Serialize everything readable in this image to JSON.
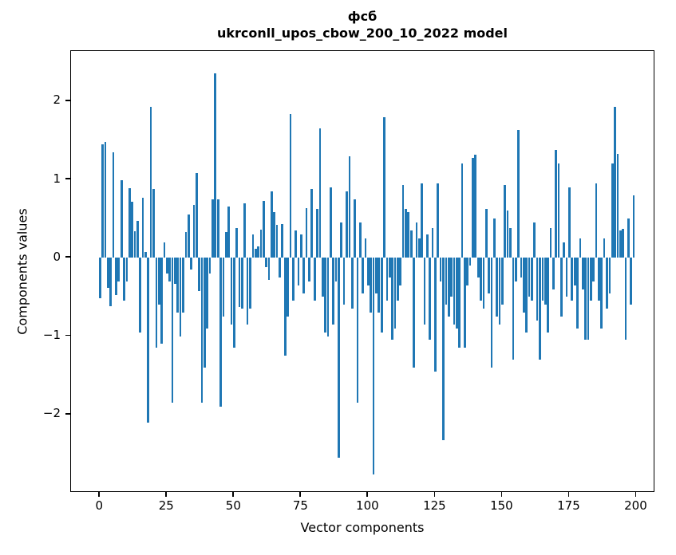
{
  "figure": {
    "title_line1": "фсб",
    "title_line2": "ukrconll_upos_cbow_200_10_2022 model"
  },
  "chart_data": {
    "type": "bar",
    "title": "фсб",
    "subtitle": "ukrconll_upos_cbow_200_10_2022 model",
    "xlabel": "Vector components",
    "ylabel": "Components values",
    "bar_color": "#1f77b4",
    "axis_color": "#000000",
    "background_color": "#ffffff",
    "grid": false,
    "legend": null,
    "bar_width_units": 0.8,
    "xlim": [
      -10.8,
      207.0
    ],
    "ylim": [
      -3.0,
      2.64
    ],
    "x_ticks": [
      0,
      25,
      50,
      75,
      100,
      125,
      150,
      175,
      200
    ],
    "x_tick_labels": [
      "0",
      "25",
      "50",
      "75",
      "100",
      "125",
      "150",
      "175",
      "200"
    ],
    "y_ticks": [
      2,
      1,
      0,
      -1,
      -2
    ],
    "y_tick_labels": [
      "2",
      "1",
      "0",
      "−1",
      "−2"
    ],
    "x_start": 0,
    "values": [
      -0.52,
      1.45,
      1.48,
      -0.38,
      -0.62,
      1.35,
      -0.48,
      -0.3,
      0.99,
      -0.55,
      -0.3,
      0.89,
      0.72,
      0.34,
      0.47,
      -0.95,
      0.77,
      0.07,
      -2.1,
      1.93,
      0.88,
      -1.15,
      -0.6,
      -1.1,
      0.2,
      -0.2,
      -0.3,
      -1.85,
      -0.33,
      -0.7,
      -1.0,
      -0.7,
      0.33,
      0.55,
      -0.15,
      0.68,
      1.08,
      -0.42,
      -1.85,
      -1.4,
      -0.9,
      -0.2,
      0.75,
      2.35,
      0.75,
      -1.9,
      -0.75,
      0.33,
      0.65,
      -0.85,
      -1.15,
      0.38,
      -0.63,
      -0.65,
      0.7,
      -0.85,
      -0.65,
      0.3,
      0.12,
      0.15,
      0.36,
      0.73,
      -0.12,
      -0.28,
      0.85,
      0.58,
      0.42,
      -0.25,
      0.43,
      -1.25,
      -0.75,
      1.84,
      -0.55,
      0.35,
      -0.35,
      0.3,
      -0.45,
      0.63,
      -0.3,
      0.88,
      -0.55,
      0.62,
      1.65,
      -0.5,
      -0.95,
      -1.0,
      0.9,
      -0.85,
      -0.3,
      -2.55,
      0.45,
      -0.6,
      0.85,
      1.3,
      -0.65,
      0.75,
      -1.85,
      0.45,
      -0.45,
      0.25,
      -0.35,
      -0.7,
      -2.77,
      -0.45,
      -0.7,
      -0.95,
      1.79,
      -0.55,
      -0.25,
      -1.05,
      -0.9,
      -0.55,
      -0.35,
      0.93,
      0.62,
      0.58,
      0.35,
      -1.4,
      0.45,
      0.25,
      0.95,
      -0.85,
      0.3,
      -1.05,
      0.38,
      -1.45,
      0.95,
      -0.3,
      -2.33,
      -0.6,
      -0.75,
      -0.5,
      -0.85,
      -0.9,
      -1.15,
      1.2,
      -1.15,
      -0.35,
      -0.1,
      1.28,
      1.32,
      -0.25,
      -0.55,
      -0.65,
      0.62,
      -0.45,
      -1.4,
      0.5,
      -0.75,
      -0.85,
      -0.6,
      0.93,
      0.6,
      0.38,
      -1.3,
      -0.3,
      1.63,
      -0.25,
      -0.7,
      -0.95,
      -0.5,
      -0.55,
      0.45,
      -0.8,
      -1.3,
      -0.55,
      -0.6,
      -0.95,
      0.38,
      -0.4,
      1.38,
      1.2,
      -0.75,
      0.2,
      -0.5,
      0.9,
      -0.55,
      -0.35,
      -0.9,
      0.25,
      -0.4,
      -1.05,
      -1.05,
      -0.55,
      -0.3,
      0.95,
      -0.55,
      -0.9,
      0.25,
      -0.65,
      -0.45,
      1.2,
      1.93,
      1.33,
      0.35,
      0.37,
      -1.05,
      0.5,
      -0.6,
      0.8
    ]
  }
}
